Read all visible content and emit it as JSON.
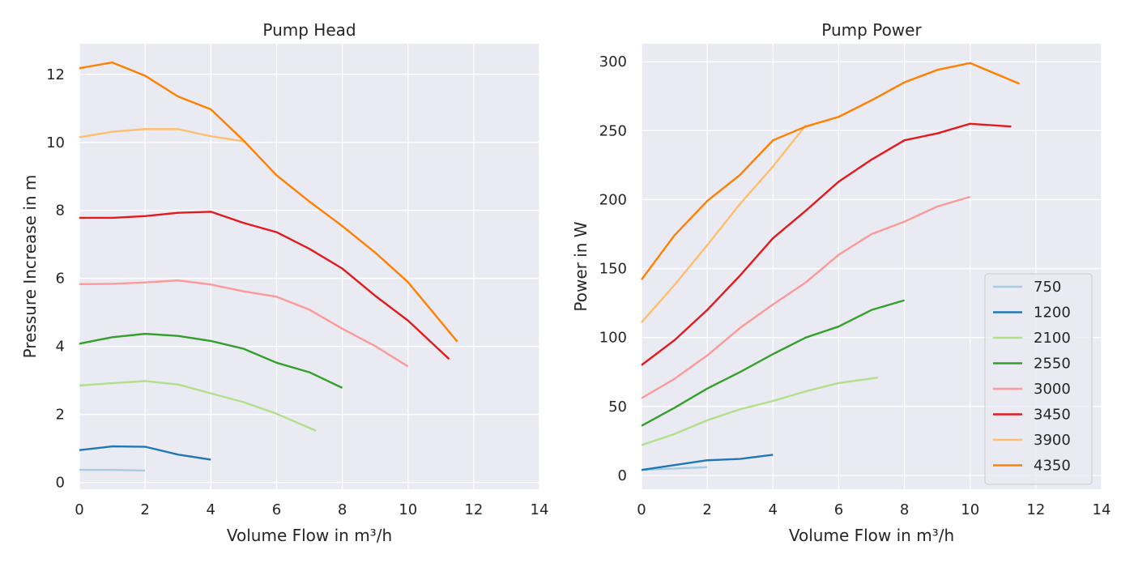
{
  "chart_data": [
    {
      "type": "line",
      "title": "Pump Head",
      "xlabel": "Volume Flow in m³/h",
      "ylabel": "Pressure Increase in m",
      "xlim": [
        0,
        14
      ],
      "ylim": [
        -0.2,
        12.9
      ],
      "xticks": [
        0,
        2,
        4,
        6,
        8,
        10,
        12,
        14
      ],
      "yticks": [
        0,
        2,
        4,
        6,
        8,
        10,
        12
      ],
      "grid": true,
      "series": [
        {
          "name": "750",
          "color": "#a6cee3",
          "x": [
            0,
            1,
            2
          ],
          "y": [
            0.37,
            0.37,
            0.35
          ]
        },
        {
          "name": "1200",
          "color": "#1f78b4",
          "x": [
            0,
            1,
            2,
            3,
            4
          ],
          "y": [
            0.95,
            1.06,
            1.05,
            0.82,
            0.67
          ]
        },
        {
          "name": "2100",
          "color": "#b2df8a",
          "x": [
            0,
            1,
            2,
            3,
            4,
            5,
            6,
            7.2
          ],
          "y": [
            2.85,
            2.92,
            2.98,
            2.88,
            2.62,
            2.36,
            2.02,
            1.52
          ]
        },
        {
          "name": "2550",
          "color": "#33a02c",
          "x": [
            0,
            1,
            2,
            3,
            4,
            5,
            6,
            7,
            8
          ],
          "y": [
            4.08,
            4.27,
            4.37,
            4.31,
            4.16,
            3.93,
            3.52,
            3.24,
            2.78
          ]
        },
        {
          "name": "3000",
          "color": "#fb9a99",
          "x": [
            0,
            1,
            2,
            3,
            4,
            5,
            6,
            7,
            8,
            9,
            10
          ],
          "y": [
            5.83,
            5.84,
            5.88,
            5.94,
            5.82,
            5.62,
            5.46,
            5.08,
            4.52,
            4.01,
            3.41
          ]
        },
        {
          "name": "3450",
          "color": "#e31a1c",
          "x": [
            0,
            1,
            2,
            3,
            4,
            5,
            6,
            7,
            8,
            9,
            10,
            11.25
          ],
          "y": [
            7.78,
            7.78,
            7.83,
            7.93,
            7.96,
            7.63,
            7.36,
            6.87,
            6.29,
            5.49,
            4.76,
            3.63
          ]
        },
        {
          "name": "3900",
          "color": "#fdbf6f",
          "x": [
            0,
            1,
            2,
            3,
            4,
            5
          ],
          "y": [
            10.15,
            10.31,
            10.39,
            10.39,
            10.18,
            10.03
          ]
        },
        {
          "name": "4350",
          "color": "#ff7f00",
          "x": [
            0,
            1,
            2,
            3,
            4,
            5,
            6,
            7,
            8,
            9,
            10,
            11.5
          ],
          "y": [
            12.18,
            12.35,
            11.96,
            11.35,
            10.97,
            10.05,
            9.03,
            8.26,
            7.54,
            6.76,
            5.89,
            4.14
          ]
        }
      ]
    },
    {
      "type": "line",
      "title": "Pump Power",
      "xlabel": "Volume Flow in m³/h",
      "ylabel": "Power in W",
      "xlim": [
        0,
        14
      ],
      "ylim": [
        -10,
        313
      ],
      "xticks": [
        0,
        2,
        4,
        6,
        8,
        10,
        12,
        14
      ],
      "yticks": [
        0,
        50,
        100,
        150,
        200,
        250,
        300
      ],
      "grid": true,
      "legend": "lower-right",
      "series": [
        {
          "name": "750",
          "color": "#a6cee3",
          "x": [
            0,
            1,
            2
          ],
          "y": [
            4,
            5,
            6
          ]
        },
        {
          "name": "1200",
          "color": "#1f78b4",
          "x": [
            0,
            1,
            2,
            3,
            4
          ],
          "y": [
            4,
            7.5,
            11,
            12,
            15
          ]
        },
        {
          "name": "2100",
          "color": "#b2df8a",
          "x": [
            0,
            1,
            2,
            3,
            4,
            5,
            6,
            7.2
          ],
          "y": [
            22,
            30,
            40,
            48,
            54,
            61,
            67,
            71
          ]
        },
        {
          "name": "2550",
          "color": "#33a02c",
          "x": [
            0,
            1,
            2,
            3,
            4,
            5,
            6,
            7,
            8
          ],
          "y": [
            36,
            49,
            63,
            75,
            88,
            100,
            108,
            120,
            127
          ]
        },
        {
          "name": "3000",
          "color": "#fb9a99",
          "x": [
            0,
            1,
            2,
            3,
            4,
            5,
            6,
            7,
            8,
            9,
            10
          ],
          "y": [
            56,
            70,
            87,
            107,
            124,
            140,
            160,
            175,
            184,
            195,
            202
          ]
        },
        {
          "name": "3450",
          "color": "#e31a1c",
          "x": [
            0,
            1,
            2,
            3,
            4,
            5,
            6,
            7,
            8,
            9,
            10,
            11.25
          ],
          "y": [
            80,
            98,
            120,
            145,
            172,
            192,
            213,
            229,
            243,
            248,
            255,
            253
          ]
        },
        {
          "name": "3900",
          "color": "#fdbf6f",
          "x": [
            0,
            1,
            2,
            3,
            4,
            5
          ],
          "y": [
            111,
            138,
            167,
            197,
            224,
            254
          ]
        },
        {
          "name": "4350",
          "color": "#ff7f00",
          "x": [
            0,
            1,
            2,
            3,
            4,
            5,
            6,
            7,
            8,
            9,
            10,
            11.5
          ],
          "y": [
            142,
            174,
            199,
            218,
            243,
            253,
            260,
            272,
            285,
            294,
            299,
            284
          ]
        }
      ]
    }
  ]
}
